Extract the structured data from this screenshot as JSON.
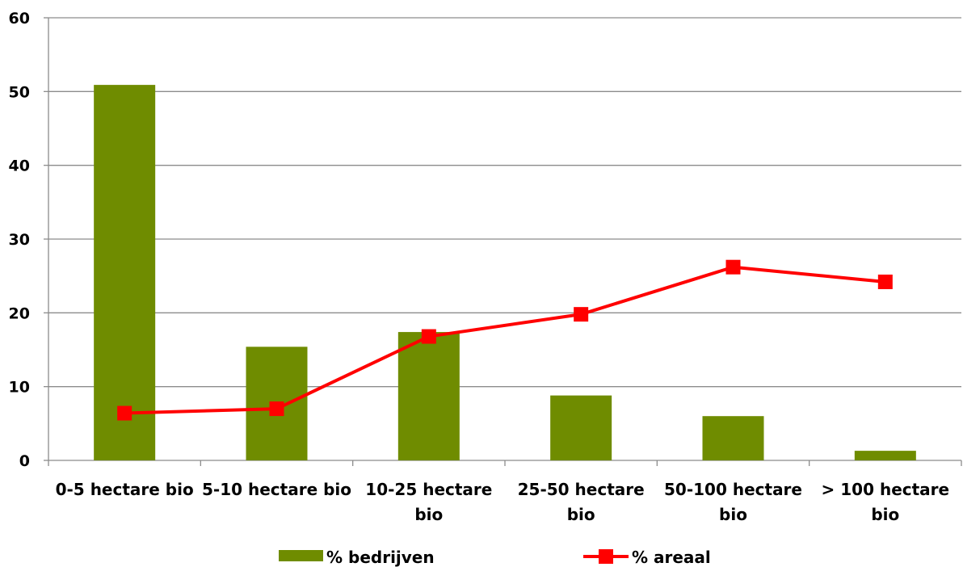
{
  "chart_data": {
    "type": "bar",
    "categories": [
      "0-5 hectare bio",
      "5-10 hectare bio",
      "10-25 hectare bio",
      "25-50 hectare bio",
      "50-100 hectare bio",
      "> 100 hectare bio"
    ],
    "category_lines": [
      [
        "0-5 hectare bio"
      ],
      [
        "5-10 hectare bio"
      ],
      [
        "10-25 hectare",
        "bio"
      ],
      [
        "25-50 hectare",
        "bio"
      ],
      [
        "50-100 hectare",
        "bio"
      ],
      [
        "> 100 hectare",
        "bio"
      ]
    ],
    "series": [
      {
        "name": "% bedrijven",
        "type": "bar",
        "color": "#6f8c00",
        "values": [
          50.9,
          15.4,
          17.4,
          8.8,
          6.0,
          1.3
        ]
      },
      {
        "name": "% areaal",
        "type": "line",
        "marker": "square",
        "color": "#ff0000",
        "values": [
          6.4,
          7.0,
          16.8,
          19.8,
          26.2,
          24.2
        ]
      }
    ],
    "y_ticks": [
      "0",
      "10",
      "20",
      "30",
      "40",
      "50",
      "60"
    ],
    "ylim": [
      0,
      60
    ],
    "title": "",
    "xlabel": "",
    "ylabel": "",
    "grid": true,
    "legend_position": "bottom"
  }
}
